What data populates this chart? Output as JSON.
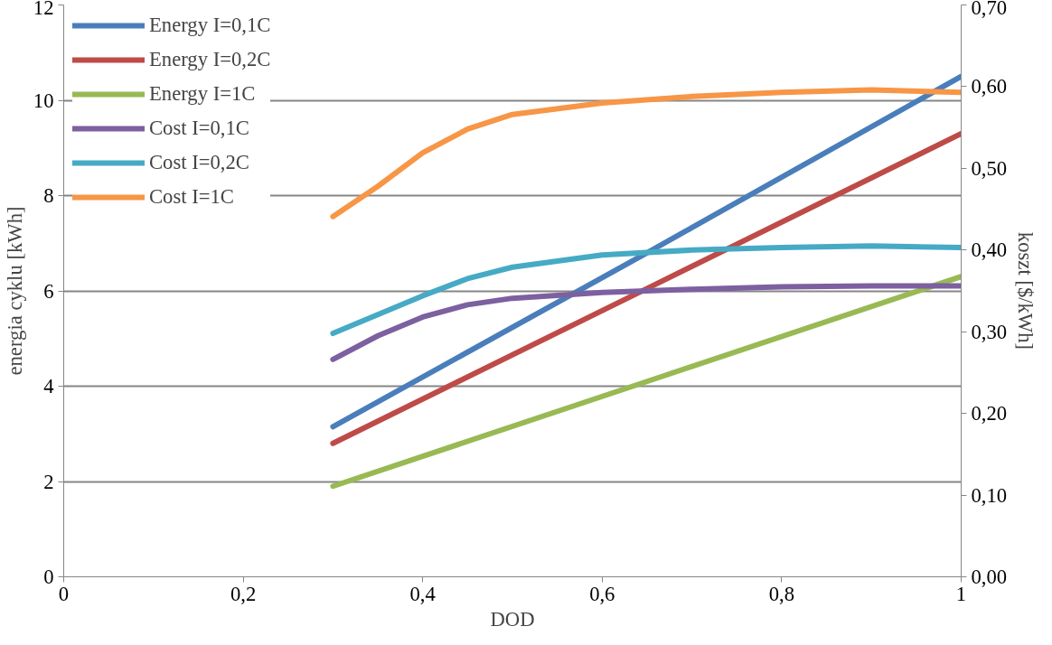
{
  "chart_data": {
    "type": "line",
    "xlabel": "DOD",
    "ylabel": "energia cyklu [kWh]",
    "y2label": "koszt [$/kWh]",
    "xlim": [
      0,
      1
    ],
    "xticks": [
      0,
      {
        "value": 0.2,
        "label": "0,2"
      },
      {
        "value": 0.4,
        "label": "0,4"
      },
      {
        "value": 0.6,
        "label": "0,6"
      },
      {
        "value": 0.8,
        "label": "0,8"
      },
      1
    ],
    "ylim": [
      0,
      12
    ],
    "yticks": [
      0,
      2,
      4,
      6,
      8,
      10,
      12
    ],
    "y2lim": [
      0,
      0.7
    ],
    "y2ticks": [
      {
        "value": 0,
        "label": "0,00"
      },
      {
        "value": 0.1,
        "label": "0,10"
      },
      {
        "value": 0.2,
        "label": "0,20"
      },
      {
        "value": 0.3,
        "label": "0,30"
      },
      {
        "value": 0.4,
        "label": "0,40"
      },
      {
        "value": 0.5,
        "label": "0,50"
      },
      {
        "value": 0.6,
        "label": "0,60"
      },
      {
        "value": 0.7,
        "label": "0,70"
      }
    ],
    "grid": "y",
    "legend": "top left",
    "marker": "none",
    "line_style": "solid",
    "series": [
      {
        "name": "Energy I=0,1C",
        "color": "#4a7ebb",
        "x": [
          0.3,
          0.65,
          1
        ],
        "values": [
          3.15,
          6.8,
          10.5
        ]
      },
      {
        "name": "Energy I=0,2C",
        "color": "#be4b48",
        "x": [
          0.3,
          0.65,
          1
        ],
        "values": [
          2.8,
          6.05,
          9.3
        ]
      },
      {
        "name": "Energy I=1C",
        "color": "#98b954",
        "x": [
          0.3,
          0.65,
          1
        ],
        "values": [
          1.9,
          4.1,
          6.3
        ]
      },
      {
        "name": "Cost I=0,1C",
        "color": "#7d60a0",
        "axis": "y2",
        "x": [
          0.3,
          0.35,
          0.4,
          0.45,
          0.5,
          0.6,
          0.7,
          0.8,
          0.9,
          1
        ],
        "values": [
          0.266,
          0.295,
          0.318,
          0.333,
          0.341,
          0.348,
          0.352,
          0.355,
          0.356,
          0.356
        ]
      },
      {
        "name": "Cost I=0,2C",
        "color": "#46aac5",
        "axis": "y2",
        "x": [
          0.3,
          0.35,
          0.4,
          0.45,
          0.5,
          0.6,
          0.7,
          0.8,
          0.9,
          1
        ],
        "values": [
          0.298,
          0.321,
          0.344,
          0.365,
          0.379,
          0.394,
          0.4,
          0.403,
          0.405,
          0.403
        ]
      },
      {
        "name": "Cost I=1C",
        "color": "#f79646",
        "axis": "y2",
        "x": [
          0.3,
          0.35,
          0.4,
          0.45,
          0.5,
          0.6,
          0.7,
          0.8,
          0.9,
          1
        ],
        "values": [
          0.441,
          0.478,
          0.519,
          0.548,
          0.566,
          0.58,
          0.588,
          0.593,
          0.596,
          0.593
        ]
      }
    ]
  }
}
